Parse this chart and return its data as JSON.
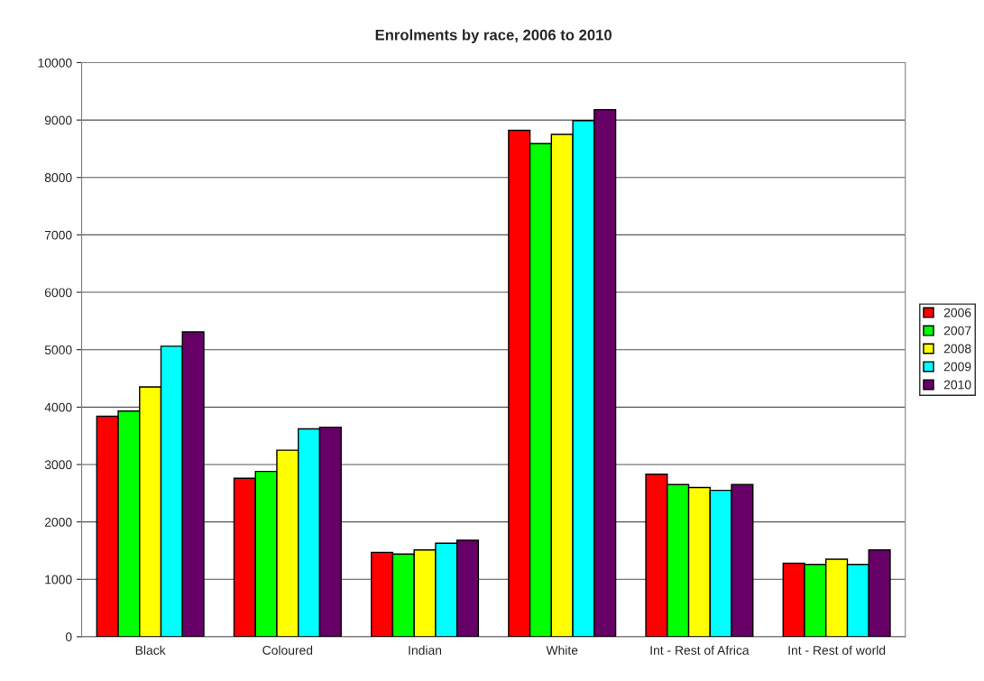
{
  "chart_data": {
    "type": "bar",
    "title": "Enrolments by race, 2006 to 2010",
    "categories": [
      "Black",
      "Coloured",
      "Indian",
      "White",
      "Int - Rest of Africa",
      "Int - Rest of world"
    ],
    "series": [
      {
        "name": "2006",
        "color": "#ff0000",
        "values": [
          3840,
          2760,
          1470,
          8820,
          2830,
          1280
        ]
      },
      {
        "name": "2007",
        "color": "#00ff00",
        "values": [
          3930,
          2880,
          1440,
          8590,
          2650,
          1260
        ]
      },
      {
        "name": "2008",
        "color": "#ffff00",
        "values": [
          4350,
          3250,
          1510,
          8750,
          2600,
          1350
        ]
      },
      {
        "name": "2009",
        "color": "#00ffff",
        "values": [
          5060,
          3620,
          1630,
          8990,
          2550,
          1260
        ]
      },
      {
        "name": "2010",
        "color": "#660066",
        "values": [
          5310,
          3650,
          1680,
          9180,
          2650,
          1510
        ]
      }
    ],
    "ylim": [
      0,
      10000
    ],
    "yticks": [
      0,
      1000,
      2000,
      3000,
      4000,
      5000,
      6000,
      7000,
      8000,
      9000,
      10000
    ],
    "grid": "y",
    "legend": "right"
  }
}
